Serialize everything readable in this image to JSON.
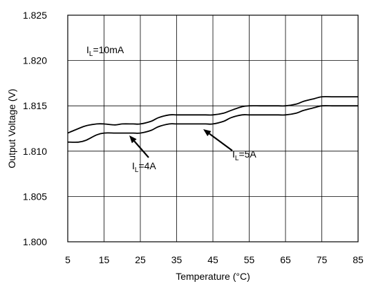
{
  "chart_data": {
    "type": "line",
    "xlabel": "Temperature (°C)",
    "ylabel": "Output Voltage (V)",
    "xlim": [
      5,
      85
    ],
    "ylim": [
      1.8,
      1.825
    ],
    "x_ticks": [
      5,
      15,
      25,
      35,
      45,
      55,
      65,
      75,
      85
    ],
    "x_tick_labels": [
      "5",
      "15",
      "25",
      "35",
      "45",
      "55",
      "65",
      "75",
      "85"
    ],
    "y_ticks": [
      1.8,
      1.805,
      1.81,
      1.815,
      1.82,
      1.825
    ],
    "y_tick_labels": [
      "1.800",
      "1.805",
      "1.810",
      "1.815",
      "1.820",
      "1.825"
    ],
    "grid": true,
    "annotations": [
      {
        "main": "I",
        "sub": "L",
        "rest": "=10mA"
      },
      {
        "main": "I",
        "sub": "L",
        "rest": "=4A"
      },
      {
        "main": "I",
        "sub": "L",
        "rest": "=5A"
      }
    ],
    "series": [
      {
        "name": "IL=4A",
        "color": "#000000",
        "x": [
          5,
          8,
          10,
          13,
          15,
          18,
          20,
          23,
          25,
          28,
          30,
          33,
          35,
          38,
          40,
          43,
          45,
          48,
          50,
          53,
          55,
          58,
          60,
          63,
          65,
          68,
          70,
          73,
          75,
          78,
          80,
          85
        ],
        "y": [
          1.812,
          1.8125,
          1.8128,
          1.813,
          1.813,
          1.8129,
          1.813,
          1.813,
          1.813,
          1.8133,
          1.8137,
          1.814,
          1.814,
          1.814,
          1.814,
          1.814,
          1.814,
          1.8142,
          1.8145,
          1.8149,
          1.815,
          1.815,
          1.815,
          1.815,
          1.815,
          1.8152,
          1.8155,
          1.8158,
          1.816,
          1.816,
          1.816,
          1.816
        ]
      },
      {
        "name": "IL=5A",
        "color": "#000000",
        "x": [
          5,
          8,
          10,
          13,
          15,
          18,
          20,
          23,
          25,
          28,
          30,
          33,
          35,
          38,
          40,
          43,
          45,
          48,
          50,
          53,
          55,
          58,
          60,
          63,
          65,
          68,
          70,
          73,
          75,
          78,
          80,
          85
        ],
        "y": [
          1.811,
          1.811,
          1.8112,
          1.8118,
          1.812,
          1.812,
          1.812,
          1.812,
          1.812,
          1.8123,
          1.8127,
          1.813,
          1.813,
          1.813,
          1.813,
          1.813,
          1.813,
          1.8133,
          1.8137,
          1.814,
          1.814,
          1.814,
          1.814,
          1.814,
          1.814,
          1.8142,
          1.8145,
          1.8148,
          1.815,
          1.815,
          1.815,
          1.815
        ]
      }
    ]
  }
}
